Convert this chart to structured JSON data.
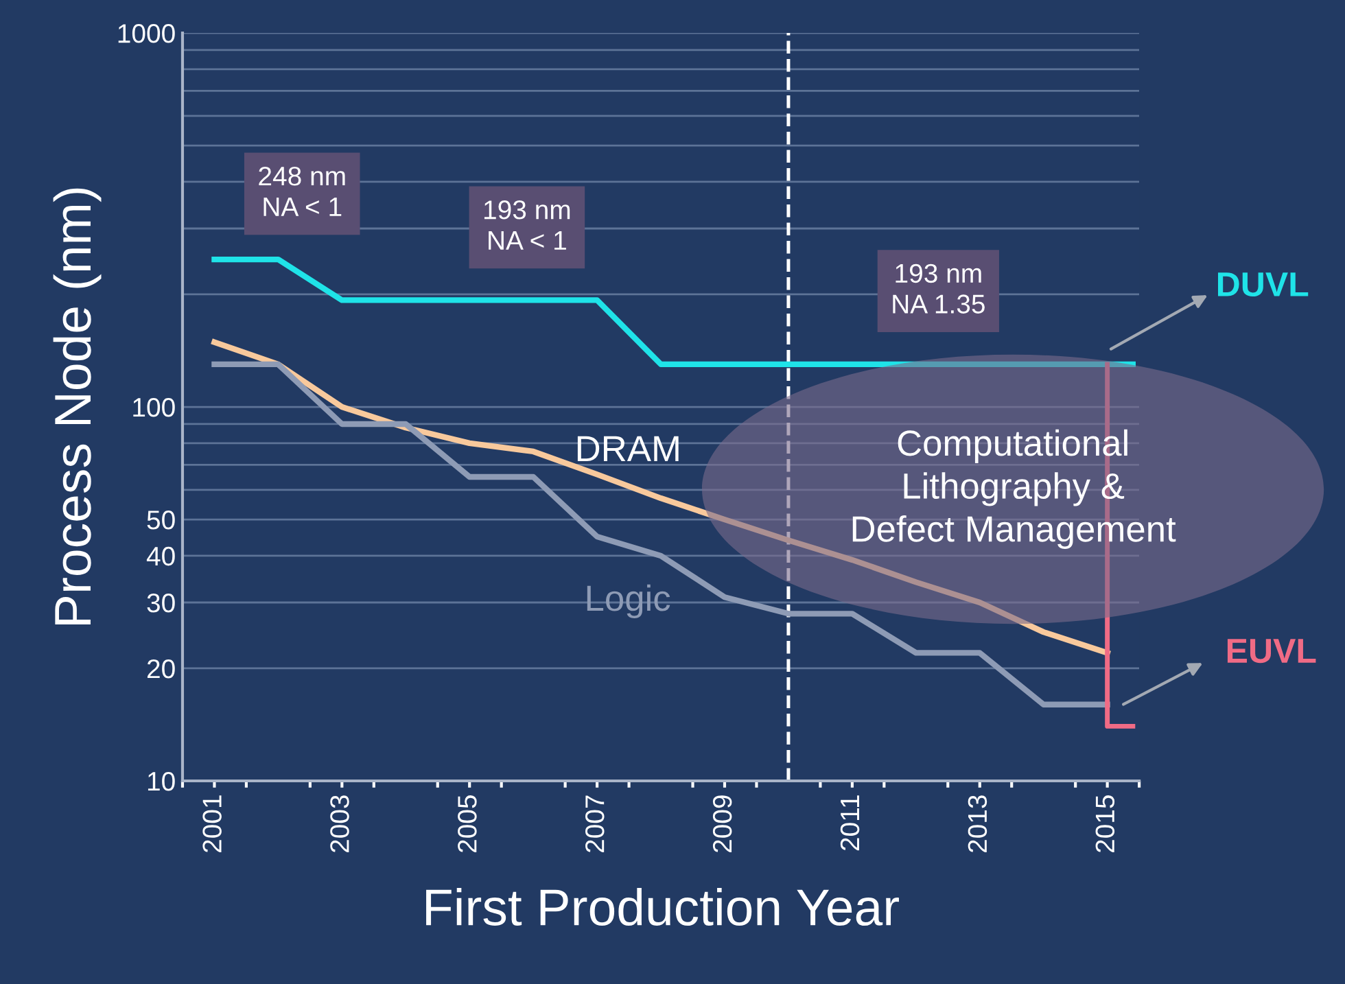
{
  "chart_data": {
    "type": "line",
    "xlabel": "First Production Year",
    "ylabel": "Process Node (nm)",
    "x": [
      2001,
      2002,
      2003,
      2004,
      2005,
      2006,
      2007,
      2008,
      2009,
      2010,
      2011,
      2012,
      2013,
      2014,
      2015
    ],
    "series": [
      {
        "name": "DUVL",
        "color": "#1fe3e8",
        "x": [
          2001,
          2002,
          2003,
          2007,
          2008,
          2015.4
        ],
        "values": [
          248,
          248,
          193,
          193,
          130,
          130
        ]
      },
      {
        "name": "DRAM",
        "color": "#f8c99c",
        "values": [
          149,
          130,
          100,
          88,
          80,
          76,
          66,
          57,
          50,
          44,
          39,
          34,
          30,
          25,
          22
        ]
      },
      {
        "name": "Logic",
        "color": "#8e9bb5",
        "values": [
          130,
          130,
          90,
          90,
          65,
          65,
          45,
          40,
          31,
          28,
          28,
          22,
          22,
          16,
          16
        ]
      },
      {
        "name": "EUVL",
        "color": "#f06b85",
        "x": [
          2015,
          2015,
          2015.4
        ],
        "values": [
          130,
          14,
          14
        ]
      }
    ],
    "log": "y",
    "ylim": [
      10,
      1000
    ],
    "yticks": [
      10,
      20,
      30,
      40,
      50,
      {
        "value": 60,
        "label": null
      },
      {
        "value": 70,
        "label": null
      },
      {
        "value": 80,
        "label": null
      },
      {
        "value": 90,
        "label": null
      },
      100,
      {
        "value": 200,
        "label": null
      },
      {
        "value": 300,
        "label": null
      },
      {
        "value": 400,
        "label": null
      },
      {
        "value": 500,
        "label": null
      },
      {
        "value": 600,
        "label": null
      },
      {
        "value": 700,
        "label": null
      },
      {
        "value": 800,
        "label": null
      },
      {
        "value": 900,
        "label": null
      },
      1000
    ],
    "xlim": [
      2000.5,
      2015.5
    ],
    "xticks": [
      {
        "value": 2000.5,
        "label": null
      },
      2001,
      {
        "value": 2001.5,
        "label": null
      },
      {
        "value": 2002.5,
        "label": null
      },
      2003,
      {
        "value": 2003.5,
        "label": null
      },
      {
        "value": 2004.5,
        "label": null
      },
      2005,
      {
        "value": 2005.5,
        "label": null
      },
      {
        "value": 2006.5,
        "label": null
      },
      2007,
      {
        "value": 2007.5,
        "label": null
      },
      {
        "value": 2008.5,
        "label": null
      },
      2009,
      {
        "value": 2009.5,
        "label": null
      },
      {
        "value": 2010.5,
        "label": null
      },
      2011,
      {
        "value": 2011.5,
        "label": null
      },
      {
        "value": 2012.5,
        "label": null
      },
      2013,
      {
        "value": 2013.5,
        "label": null
      },
      {
        "value": 2014.5,
        "label": null
      },
      2015,
      {
        "value": 2015.5,
        "label": null
      }
    ],
    "ref_lines": [
      {
        "axis": "x",
        "value": 2010,
        "label": null,
        "color": "#ffffff",
        "line_style": "dashed"
      }
    ],
    "grid": "y",
    "legend": false,
    "marker": "none",
    "line_style": "solid",
    "annotations": [
      "248 nm\nNA < 1",
      "193 nm\nNA < 1",
      "193 nm\nNA 1.35",
      "Computational\nLithography &\nDefect Management"
    ]
  }
}
